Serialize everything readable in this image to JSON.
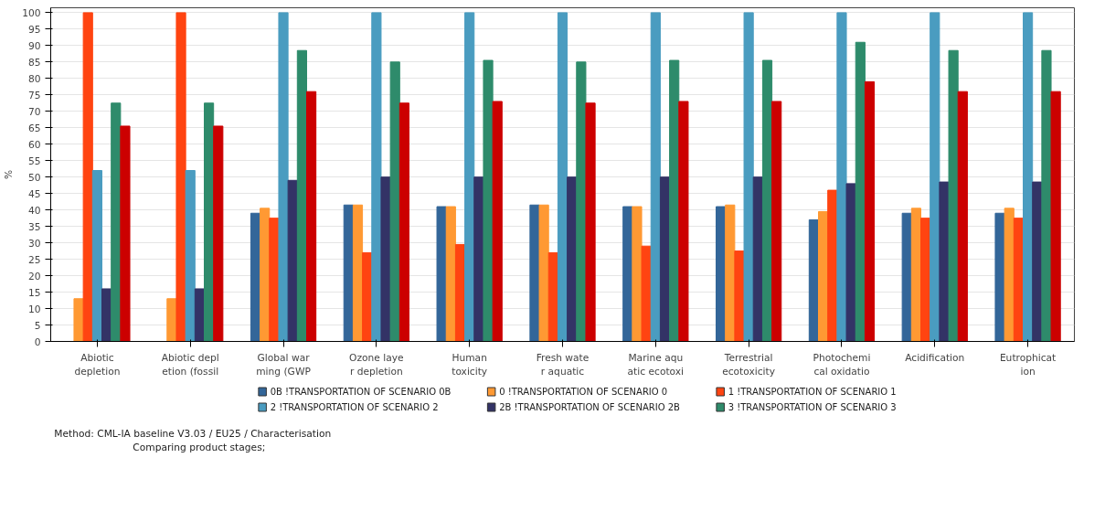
{
  "chart_data": {
    "type": "bar",
    "ylabel": "%",
    "categories": [
      "Abiotic\ndepletion",
      "Abiotic depl\netion (fossil",
      "Global war\nming (GWP",
      "Ozone laye\nr depletion",
      "Human\ntoxicity",
      "Fresh wate\nr aquatic",
      "Marine aqu\natic ecotoxi",
      "Terrestrial\necotoxicity",
      "Photochemi\ncal oxidatio",
      "Acidification",
      "Eutrophicat\nion"
    ],
    "series": [
      {
        "name": "0B !TRANSPORTATION OF SCENARIO 0B",
        "color": "#336699",
        "values": [
          0,
          0,
          39,
          41.5,
          41,
          41.5,
          41,
          41,
          37,
          39,
          39
        ]
      },
      {
        "name": "0 !TRANSPORTATION OF SCENARIO 0",
        "color": "#ff9933",
        "values": [
          13,
          13,
          40.5,
          41.5,
          41,
          41.5,
          41,
          41.5,
          39.5,
          40.5,
          40.5
        ]
      },
      {
        "name": "1 !TRANSPORTATION OF SCENARIO 1",
        "color": "#ff4411",
        "values": [
          100,
          100,
          37.5,
          27,
          29.5,
          27,
          29,
          27.5,
          46,
          37.5,
          37.5
        ]
      },
      {
        "name": "2 !TRANSPORTATION OF SCENARIO 2",
        "color": "#4a9cc0",
        "values": [
          52,
          52,
          100,
          100,
          100,
          100,
          100,
          100,
          100,
          100,
          100
        ]
      },
      {
        "name": "2B !TRANSPORTATION OF SCENARIO 2B",
        "color": "#333366",
        "values": [
          16,
          16,
          49,
          50,
          50,
          50,
          50,
          50,
          48,
          48.5,
          48.5
        ]
      },
      {
        "name": "3 !TRANSPORTATION OF SCENARIO 3",
        "color": "#2e8b6b",
        "values": [
          72.5,
          72.5,
          88.5,
          85,
          85.5,
          85,
          85.5,
          85.5,
          91,
          88.5,
          88.5
        ]
      },
      {
        "color": "#cc0000",
        "values": [
          65.5,
          65.5,
          76,
          72.5,
          73,
          72.5,
          73,
          73,
          79,
          76,
          76
        ]
      }
    ],
    "ylim": [
      0,
      101.5
    ],
    "yticks": [
      0,
      5,
      10,
      15,
      20,
      25,
      30,
      35,
      40,
      45,
      50,
      55,
      60,
      65,
      70,
      75,
      80,
      85,
      90,
      95,
      100
    ],
    "grid": "y",
    "legend": "bottom",
    "annotations": [
      "Method: CML-IA baseline V3.03 / EU25 / Characterisation",
      "Comparing product stages;"
    ]
  }
}
